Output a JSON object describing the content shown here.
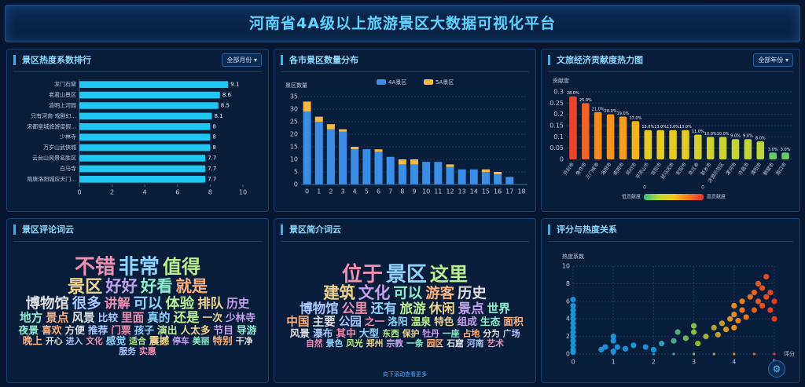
{
  "title": "河南省4A级以上旅游景区大数据可视化平台",
  "chart_data": [
    {
      "type": "hbar",
      "title": "景区热度系数排行",
      "filter": "全部月份",
      "categories": [
        "龙门石窟",
        "老君山景区",
        "清明上河园",
        "只有河南·戏剧幻...",
        "宋都皇城旅游度假...",
        "少林寺",
        "万岁山武侠城",
        "云台山风景名胜区",
        "白马寺",
        "隋唐洛阳城应天门..."
      ],
      "values": [
        9.1,
        8.6,
        8.5,
        8.1,
        8,
        8,
        8,
        7.7,
        7.7,
        7.7
      ],
      "color": "#1ec8f0",
      "xlim": [
        0,
        10
      ],
      "xticks": [
        0,
        2,
        4,
        6,
        8,
        10
      ]
    },
    {
      "type": "stacked",
      "title": "各市景区数量分布",
      "y_label": "景区数量",
      "categories": [
        "0",
        "1",
        "2",
        "3",
        "4",
        "5",
        "6",
        "7",
        "8",
        "9",
        "10",
        "11",
        "12",
        "13",
        "14",
        "15",
        "16",
        "17",
        "18"
      ],
      "series": [
        {
          "name": "4A景区",
          "color": "#3a8ee6",
          "values": [
            29,
            25,
            22,
            21,
            14,
            14,
            13,
            11,
            8,
            8,
            9,
            9,
            7,
            6,
            6,
            5,
            4,
            3,
            null
          ]
        },
        {
          "name": "5A景区",
          "color": "#f5b940",
          "values": [
            4,
            2,
            2,
            1,
            1,
            0,
            1,
            0,
            2,
            2,
            0,
            0,
            1,
            0,
            0,
            1,
            1,
            0,
            null
          ]
        }
      ],
      "ylim": [
        0,
        35
      ],
      "yticks": [
        0,
        5,
        10,
        15,
        20,
        25,
        30,
        35
      ],
      "grid": true
    },
    {
      "type": "colorbar",
      "title": "文旅经济贡献度热力图",
      "filter": "全部年份",
      "y_label": "贡献度",
      "categories": [
        "开封市",
        "焦作市",
        "三门峡市",
        "洛阳市",
        "南阳市",
        "郑州市",
        "平顶山市",
        "信阳市",
        "驻马店市",
        "安阳市",
        "商丘市",
        "新乡市",
        "济源示范区",
        "漯河市",
        "许昌市",
        "濮阳市",
        "鹤壁市",
        "周口市"
      ],
      "values": [
        0.28,
        0.25,
        0.21,
        0.2,
        0.19,
        0.17,
        0.13,
        0.13,
        0.13,
        0.13,
        0.11,
        0.1,
        0.1,
        0.09,
        0.09,
        0.08,
        0.03,
        0.03
      ],
      "value_labels": [
        "28.0%",
        "25.0%",
        "21.0%",
        "20.0%",
        "19.0%",
        "17.0%",
        "13.0%",
        "13.0%",
        "13.0%",
        "13.0%",
        "11.0%",
        "10.0%",
        "10.0%",
        "9.0%",
        "9.0%",
        "8.0%",
        "3.0%",
        "3.0%"
      ],
      "ylim": [
        0,
        0.3
      ],
      "yticks": [
        0,
        0.05,
        0.1,
        0.15,
        0.2,
        0.25,
        0.3
      ],
      "grid": true,
      "visual_map": {
        "min": 0,
        "max": 0,
        "low_text": "低贡献度",
        "high_text": "高贡献度",
        "colors": [
          "#2ec27e",
          "#b8d935",
          "#f5c518",
          "#f57c1f",
          "#e8302a"
        ]
      }
    },
    {
      "type": "wordcloud",
      "title": "景区评论词云",
      "words": [
        {
          "text": "不错",
          "weight": 10
        },
        {
          "text": "非常",
          "weight": 10
        },
        {
          "text": "值得",
          "weight": 9
        },
        {
          "text": "景区",
          "weight": 8
        },
        {
          "text": "好好",
          "weight": 7
        },
        {
          "text": "好看",
          "weight": 7
        },
        {
          "text": "就是",
          "weight": 7
        },
        {
          "text": "博物馆",
          "weight": 6
        },
        {
          "text": "很多",
          "weight": 6
        },
        {
          "text": "讲解",
          "weight": 5
        },
        {
          "text": "可以",
          "weight": 6
        },
        {
          "text": "体验",
          "weight": 6
        },
        {
          "text": "排队",
          "weight": 5
        },
        {
          "text": "历史",
          "weight": 4
        },
        {
          "text": "地方",
          "weight": 4
        },
        {
          "text": "景点",
          "weight": 4
        },
        {
          "text": "风景",
          "weight": 4
        },
        {
          "text": "比较",
          "weight": 3
        },
        {
          "text": "里面",
          "weight": 4
        },
        {
          "text": "真的",
          "weight": 4
        },
        {
          "text": "还是",
          "weight": 5
        },
        {
          "text": "一次",
          "weight": 3
        },
        {
          "text": "少林寺",
          "weight": 3
        },
        {
          "text": "夜景",
          "weight": 3
        },
        {
          "text": "喜欢",
          "weight": 3
        },
        {
          "text": "方便",
          "weight": 3
        },
        {
          "text": "推荐",
          "weight": 3
        },
        {
          "text": "门票",
          "weight": 3
        },
        {
          "text": "孩子",
          "weight": 3
        },
        {
          "text": "演出",
          "weight": 3
        },
        {
          "text": "人太多",
          "weight": 3
        },
        {
          "text": "节目",
          "weight": 3
        },
        {
          "text": "导游",
          "weight": 3
        },
        {
          "text": "晚上",
          "weight": 3
        },
        {
          "text": "开心",
          "weight": 2
        },
        {
          "text": "进入",
          "weight": 2
        },
        {
          "text": "文化",
          "weight": 2
        },
        {
          "text": "感觉",
          "weight": 3
        },
        {
          "text": "适合",
          "weight": 2
        },
        {
          "text": "震撼",
          "weight": 3
        },
        {
          "text": "停车",
          "weight": 2
        },
        {
          "text": "美丽",
          "weight": 2
        },
        {
          "text": "特别",
          "weight": 3
        },
        {
          "text": "干净",
          "weight": 2
        },
        {
          "text": "服务",
          "weight": 2
        },
        {
          "text": "实惠",
          "weight": 2
        }
      ]
    },
    {
      "type": "wordcloud",
      "title": "景区简介词云",
      "hint": "向下滚动查看更多",
      "words": [
        {
          "text": "位于",
          "weight": 10
        },
        {
          "text": "景区",
          "weight": 10
        },
        {
          "text": "这里",
          "weight": 9
        },
        {
          "text": "建筑",
          "weight": 7
        },
        {
          "text": "文化",
          "weight": 7
        },
        {
          "text": "可以",
          "weight": 6
        },
        {
          "text": "游客",
          "weight": 6
        },
        {
          "text": "历史",
          "weight": 6
        },
        {
          "text": "博物馆",
          "weight": 5
        },
        {
          "text": "公里",
          "weight": 5
        },
        {
          "text": "还有",
          "weight": 5
        },
        {
          "text": "旅游",
          "weight": 5
        },
        {
          "text": "休闲",
          "weight": 5
        },
        {
          "text": "景点",
          "weight": 5
        },
        {
          "text": "世界",
          "weight": 4
        },
        {
          "text": "中国",
          "weight": 4
        },
        {
          "text": "主要",
          "weight": 4
        },
        {
          "text": "公园",
          "weight": 4
        },
        {
          "text": "之一",
          "weight": 3
        },
        {
          "text": "洛阳",
          "weight": 3
        },
        {
          "text": "温泉",
          "weight": 3
        },
        {
          "text": "特色",
          "weight": 3
        },
        {
          "text": "组成",
          "weight": 3
        },
        {
          "text": "生态",
          "weight": 3
        },
        {
          "text": "面积",
          "weight": 3
        },
        {
          "text": "风景",
          "weight": 3
        },
        {
          "text": "瀑布",
          "weight": 3
        },
        {
          "text": "其中",
          "weight": 3
        },
        {
          "text": "大型",
          "weight": 3
        },
        {
          "text": "东西",
          "weight": 2
        },
        {
          "text": "保护",
          "weight": 2
        },
        {
          "text": "牡丹",
          "weight": 2
        },
        {
          "text": "一座",
          "weight": 2
        },
        {
          "text": "占地",
          "weight": 2
        },
        {
          "text": "分为",
          "weight": 2
        },
        {
          "text": "广场",
          "weight": 2
        },
        {
          "text": "自然",
          "weight": 2
        },
        {
          "text": "景色",
          "weight": 2
        },
        {
          "text": "风光",
          "weight": 2
        },
        {
          "text": "郑州",
          "weight": 2
        },
        {
          "text": "宗教",
          "weight": 2
        },
        {
          "text": "一条",
          "weight": 2
        },
        {
          "text": "园区",
          "weight": 2
        },
        {
          "text": "石窟",
          "weight": 2
        },
        {
          "text": "河南",
          "weight": 2
        },
        {
          "text": "艺术",
          "weight": 2
        }
      ]
    },
    {
      "type": "scatter",
      "title": "评分与热度关系",
      "x_label": "评分",
      "y_label": "热度系数",
      "x": [
        0,
        0,
        0,
        0,
        0,
        0,
        0,
        0,
        0,
        0,
        0,
        0,
        0,
        1,
        1,
        1,
        1.1,
        0.7,
        0.8,
        1.3,
        1.5,
        1.8,
        2,
        2.2,
        2.5,
        2.6,
        2.8,
        3,
        3,
        3.1,
        3.3,
        3.5,
        3.6,
        3.7,
        3.8,
        3.9,
        4,
        4,
        4,
        4.1,
        4.2,
        4.2,
        4.3,
        4.4,
        4.5,
        4.5,
        4.6,
        4.6,
        4.7,
        4.7,
        4.8,
        4.8,
        4.9,
        4.9,
        5,
        5,
        2.5,
        3,
        3.5,
        4,
        4.5,
        5,
        1,
        2
      ],
      "y": [
        0.2,
        0.5,
        1,
        1.5,
        2,
        2.5,
        3,
        3.5,
        4,
        4.5,
        5,
        5.5,
        6.2,
        0.3,
        1.5,
        2,
        0.8,
        0.5,
        0.8,
        0.6,
        1,
        0.8,
        0.5,
        1.2,
        1.5,
        2.5,
        1.8,
        2.5,
        3.2,
        1.2,
        2,
        3,
        2.2,
        3.5,
        2.8,
        4,
        3,
        4.5,
        5.5,
        3.8,
        5,
        6,
        4.2,
        6.5,
        5,
        7,
        6,
        8,
        5.5,
        7.5,
        6.5,
        8.8,
        7,
        5,
        6,
        4,
        0,
        0,
        0,
        0,
        0,
        0,
        0,
        0
      ],
      "xlim": [
        0,
        5
      ],
      "xticks": [
        0,
        1,
        2,
        3,
        4,
        5
      ],
      "ylim": [
        0,
        10
      ],
      "yticks": [
        0,
        2,
        4,
        6,
        8,
        10
      ],
      "grid": true,
      "colors": [
        "#1c9ee6",
        "#1c9ee6",
        "#1c9ee6",
        "#8fd13a",
        "#ff9a1a",
        "#ff3d1a"
      ]
    }
  ]
}
